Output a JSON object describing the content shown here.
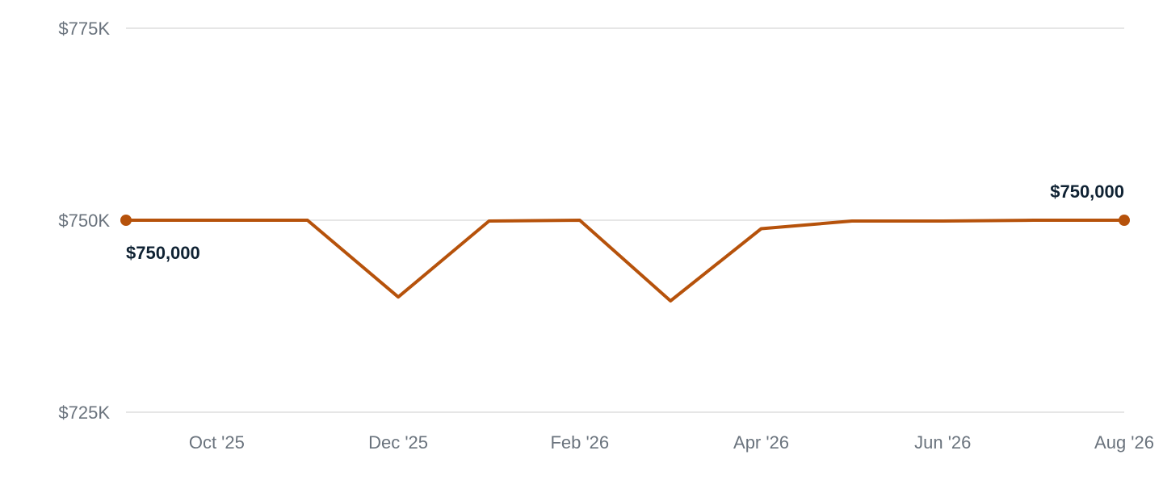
{
  "chart_data": {
    "type": "line",
    "title": "",
    "xlabel": "",
    "ylabel": "",
    "ylim": [
      725000,
      775000
    ],
    "y_ticks": [
      {
        "value": 775000,
        "label": "$775K"
      },
      {
        "value": 750000,
        "label": "$750K"
      },
      {
        "value": 725000,
        "label": "$725K"
      }
    ],
    "x_ticks": [
      {
        "date": "2025-10",
        "label": "Oct '25"
      },
      {
        "date": "2025-12",
        "label": "Dec '25"
      },
      {
        "date": "2026-02",
        "label": "Feb '26"
      },
      {
        "date": "2026-04",
        "label": "Apr '26"
      },
      {
        "date": "2026-06",
        "label": "Jun '26"
      },
      {
        "date": "2026-08",
        "label": "Aug '26"
      }
    ],
    "grid": true,
    "legend": "none",
    "series": [
      {
        "color": "#b6520b",
        "points": [
          {
            "date": "2025-09",
            "value": 750000
          },
          {
            "date": "2025-10",
            "value": 750000
          },
          {
            "date": "2025-11",
            "value": 750000
          },
          {
            "date": "2025-12",
            "value": 740000
          },
          {
            "date": "2026-01",
            "value": 749900
          },
          {
            "date": "2026-02",
            "value": 750000
          },
          {
            "date": "2026-03",
            "value": 739500
          },
          {
            "date": "2026-04",
            "value": 748900
          },
          {
            "date": "2026-05",
            "value": 749900
          },
          {
            "date": "2026-06",
            "value": 749900
          },
          {
            "date": "2026-07",
            "value": 750000
          },
          {
            "date": "2026-08",
            "value": 750000
          }
        ]
      }
    ],
    "annotations": {
      "start_label": "$750,000",
      "end_label": "$750,000"
    }
  }
}
